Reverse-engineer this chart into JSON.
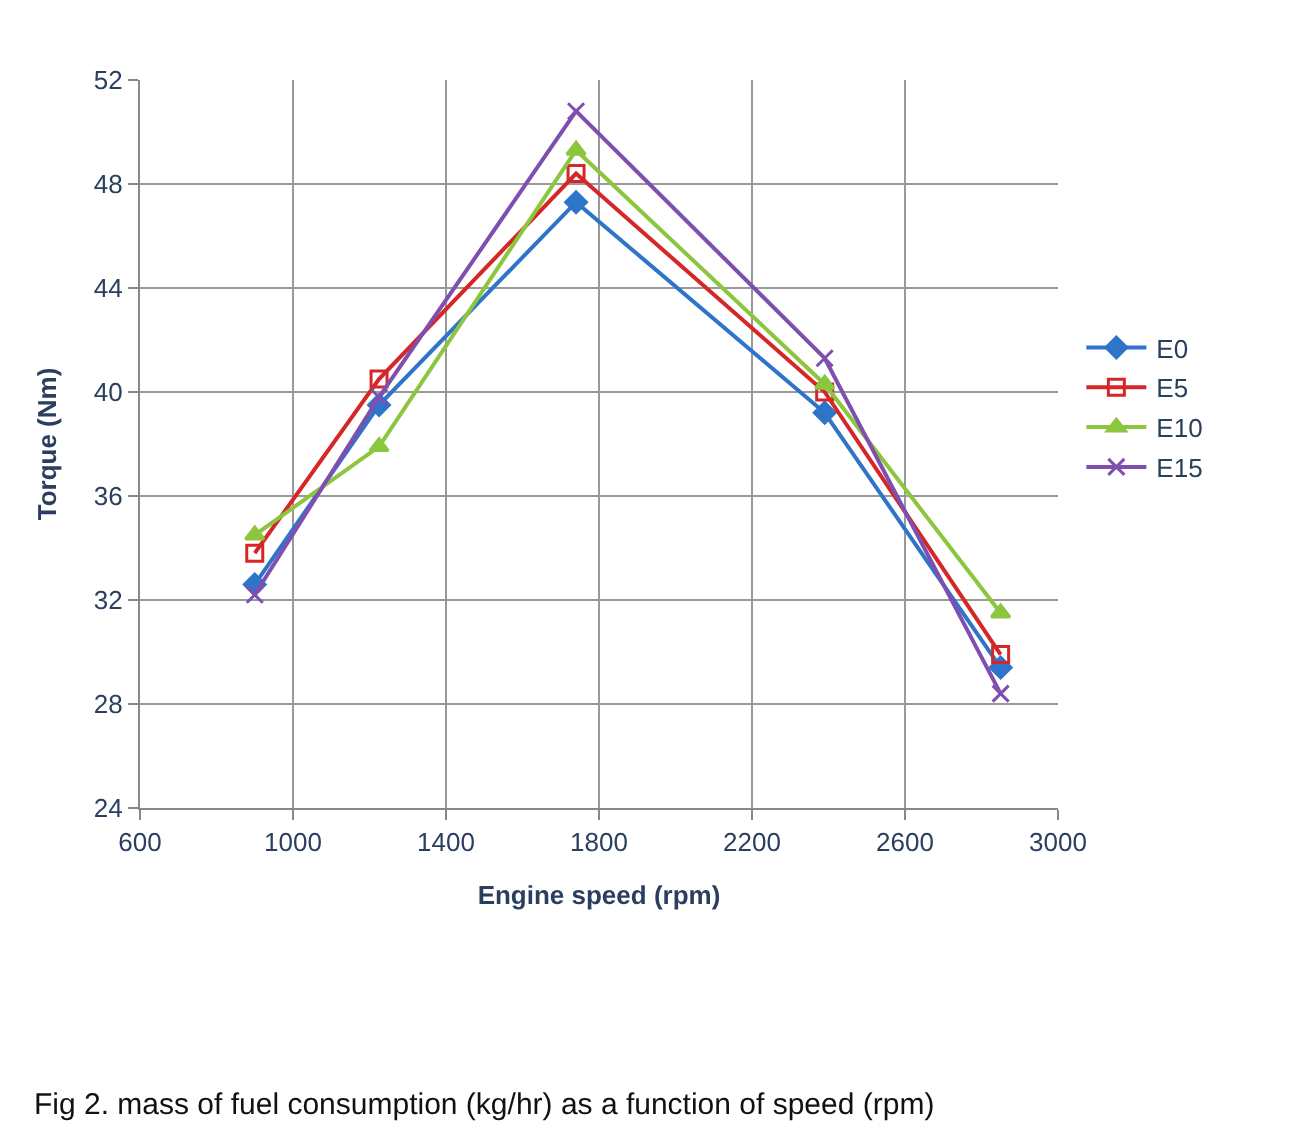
{
  "chart_data": {
    "type": "line",
    "xlabel": "Engine speed (rpm)",
    "ylabel": "Torque (Nm)",
    "x": [
      900,
      1225,
      1740,
      2390,
      2850
    ],
    "series": [
      {
        "name": "E0",
        "color": "#2e75c9",
        "marker": "diamond",
        "values": [
          32.6,
          39.5,
          47.3,
          39.2,
          29.4
        ]
      },
      {
        "name": "E5",
        "color": "#d62728",
        "marker": "square-open",
        "values": [
          33.8,
          40.5,
          48.4,
          40.0,
          29.9
        ]
      },
      {
        "name": "E10",
        "color": "#8cc63f",
        "marker": "triangle",
        "values": [
          34.5,
          37.9,
          49.3,
          40.3,
          31.5
        ]
      },
      {
        "name": "E15",
        "color": "#7f4fb0",
        "marker": "x",
        "values": [
          32.2,
          39.8,
          50.8,
          41.3,
          28.4
        ]
      }
    ],
    "xlim": [
      600,
      3000
    ],
    "xticks": [
      600,
      1000,
      1400,
      1800,
      2200,
      2600,
      3000
    ],
    "ylim": [
      24,
      52
    ],
    "yticks": [
      24,
      28,
      32,
      36,
      40,
      44,
      48,
      52
    ],
    "grid": true,
    "legend": "right",
    "line_style": "solid",
    "annotations": [
      "Fig 2. mass of fuel consumption (kg/hr) as a function of speed (rpm)"
    ]
  }
}
